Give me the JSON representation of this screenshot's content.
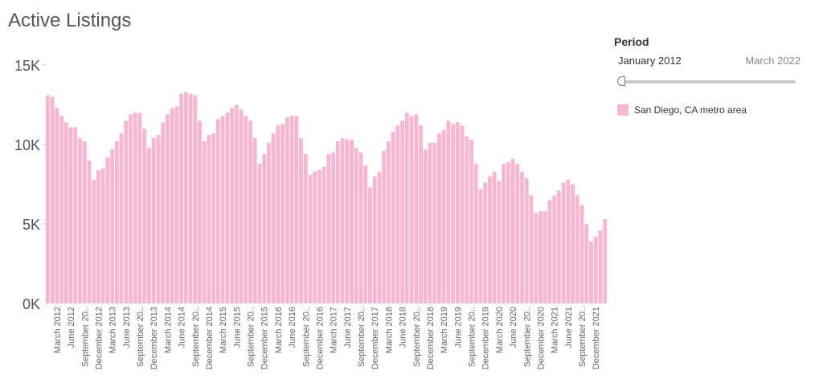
{
  "title": "Active Listings",
  "filter": {
    "label": "Period",
    "start": "January 2012",
    "end": "March 2022"
  },
  "legend": {
    "series_name": "San Diego, CA metro area",
    "color": "#f9b6d3"
  },
  "colors": {
    "bar": "#f9b6d3",
    "axis_text": "#555555",
    "tick_text": "#666666"
  },
  "chart_data": {
    "type": "bar",
    "title": "Active Listings",
    "ylim": [
      0,
      15000
    ],
    "ytick_labels": [
      "0K",
      "5K",
      "10K",
      "15K"
    ],
    "ytick_values": [
      0,
      5000,
      10000,
      15000
    ],
    "xtick_labels": [
      "March 2012",
      "June 2012",
      "September 20..",
      "December 2012",
      "March 2013",
      "June 2013",
      "September 20..",
      "December 2013",
      "March 2014",
      "June 2014",
      "September 20..",
      "December 2014",
      "March 2015",
      "June 2015",
      "September 20..",
      "December 2015",
      "March 2016",
      "June 2016",
      "September 20..",
      "December 2016",
      "March 2017",
      "June 2017",
      "September 20..",
      "December 2017",
      "March 2018",
      "June 2018",
      "September 20..",
      "December 2018",
      "March 2019",
      "June 2019",
      "September 20..",
      "December 2019",
      "March 2020",
      "June 2020",
      "September 20..",
      "December 2020",
      "March 2021",
      "June 2021",
      "September 20..",
      "December 2021"
    ],
    "start_month": "January 2012",
    "end_month": "March 2022",
    "grid": false,
    "legend_position": "right",
    "series": [
      {
        "name": "San Diego, CA metro area",
        "values": [
          13100,
          13000,
          12300,
          11800,
          11400,
          11100,
          11100,
          10400,
          10200,
          9000,
          7800,
          8400,
          8500,
          9200,
          9700,
          10200,
          10700,
          11500,
          11900,
          12000,
          12000,
          11000,
          9800,
          10400,
          10600,
          11400,
          11900,
          12300,
          12400,
          13200,
          13300,
          13200,
          13100,
          11500,
          10200,
          10600,
          10700,
          11600,
          11800,
          12000,
          12300,
          12500,
          12200,
          11800,
          11500,
          10400,
          8800,
          9400,
          10100,
          10700,
          11200,
          11300,
          11700,
          11800,
          11800,
          10400,
          9400,
          8100,
          8300,
          8400,
          8600,
          9400,
          9500,
          10200,
          10400,
          10300,
          10300,
          9800,
          9500,
          8700,
          7300,
          8000,
          8300,
          9600,
          10200,
          10800,
          11200,
          11500,
          12000,
          11800,
          11900,
          11200,
          9700,
          10100,
          10100,
          10700,
          10900,
          11500,
          11300,
          11400,
          11200,
          10500,
          10300,
          8800,
          7200,
          7600,
          8000,
          8300,
          7700,
          8800,
          8900,
          9100,
          8800,
          8300,
          7900,
          6800,
          5700,
          5800,
          5800,
          6500,
          6800,
          7100,
          7600,
          7800,
          7500,
          6800,
          6200,
          5000,
          3900,
          4200,
          4600,
          5300
        ]
      }
    ]
  }
}
